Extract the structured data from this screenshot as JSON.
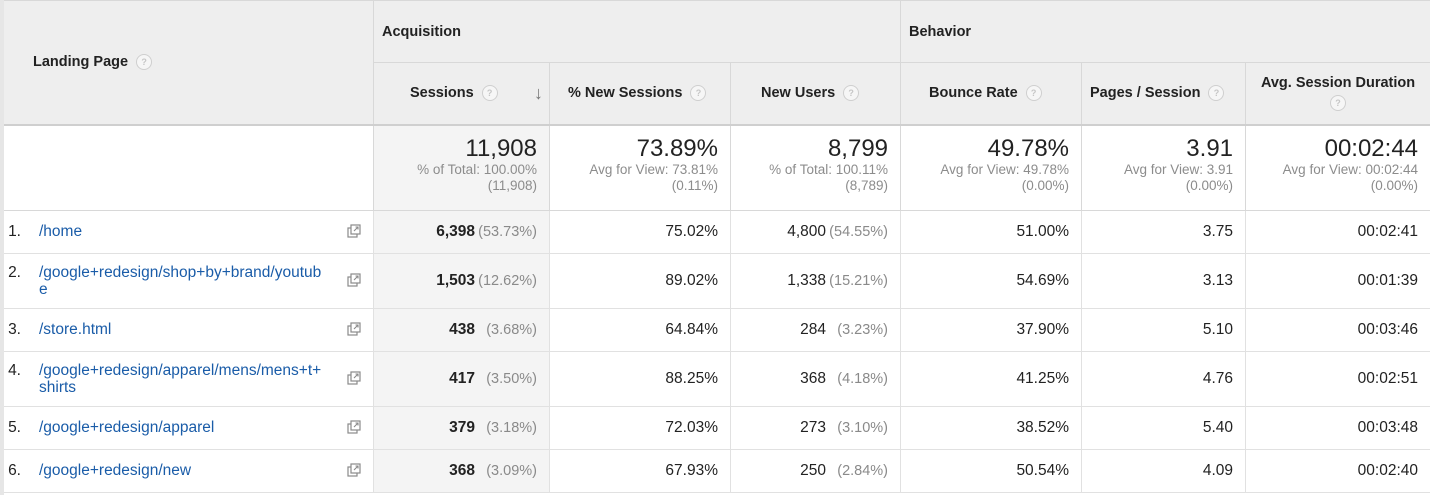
{
  "columns": {
    "landing_page": "Landing Page",
    "acquisition": "Acquisition",
    "behavior": "Behavior",
    "sessions": "Sessions",
    "pct_new_sessions": "% New Sessions",
    "new_users": "New Users",
    "bounce_rate": "Bounce Rate",
    "pages_per_session": "Pages / Session",
    "avg_session_duration": "Avg. Session Duration",
    "help_glyph": "?",
    "sort_glyph": "↓"
  },
  "totals": {
    "sessions": {
      "value": "11,908",
      "line1": "% of Total: 100.00%",
      "line2": "(11,908)"
    },
    "pct_new_sessions": {
      "value": "73.89%",
      "line1": "Avg for View: 73.81%",
      "line2": "(0.11%)"
    },
    "new_users": {
      "value": "8,799",
      "line1": "% of Total: 100.11%",
      "line2": "(8,789)"
    },
    "bounce_rate": {
      "value": "49.78%",
      "line1": "Avg for View: 49.78%",
      "line2": "(0.00%)"
    },
    "pages_per_session": {
      "value": "3.91",
      "line1": "Avg for View: 3.91",
      "line2": "(0.00%)"
    },
    "avg_session_duration": {
      "value": "00:02:44",
      "line1": "Avg for View: 00:02:44",
      "line2": "(0.00%)"
    }
  },
  "rows": [
    {
      "num": "1.",
      "page": "/home",
      "sessions": "6,398",
      "sessions_pct": "(53.73%)",
      "pct_new": "75.02%",
      "new_users": "4,800",
      "new_users_pct": "(54.55%)",
      "bounce": "51.00%",
      "pps": "3.75",
      "duration": "00:02:41"
    },
    {
      "num": "2.",
      "page": "/google+redesign/shop+by+brand/youtube",
      "sessions": "1,503",
      "sessions_pct": "(12.62%)",
      "pct_new": "89.02%",
      "new_users": "1,338",
      "new_users_pct": "(15.21%)",
      "bounce": "54.69%",
      "pps": "3.13",
      "duration": "00:01:39"
    },
    {
      "num": "3.",
      "page": "/store.html",
      "sessions": "438",
      "sessions_pct": "(3.68%)",
      "pct_new": "64.84%",
      "new_users": "284",
      "new_users_pct": "(3.23%)",
      "bounce": "37.90%",
      "pps": "5.10",
      "duration": "00:03:46"
    },
    {
      "num": "4.",
      "page": "/google+redesign/apparel/mens/mens+t+shirts",
      "sessions": "417",
      "sessions_pct": "(3.50%)",
      "pct_new": "88.25%",
      "new_users": "368",
      "new_users_pct": "(4.18%)",
      "bounce": "41.25%",
      "pps": "4.76",
      "duration": "00:02:51"
    },
    {
      "num": "5.",
      "page": "/google+redesign/apparel",
      "sessions": "379",
      "sessions_pct": "(3.18%)",
      "pct_new": "72.03%",
      "new_users": "273",
      "new_users_pct": "(3.10%)",
      "bounce": "38.52%",
      "pps": "5.40",
      "duration": "00:03:48"
    },
    {
      "num": "6.",
      "page": "/google+redesign/new",
      "sessions": "368",
      "sessions_pct": "(3.09%)",
      "pct_new": "67.93%",
      "new_users": "250",
      "new_users_pct": "(2.84%)",
      "bounce": "50.54%",
      "pps": "4.09",
      "duration": "00:02:40"
    }
  ],
  "colors": {
    "link": "#1a5ca8",
    "header_bg": "#eeeeee",
    "sorted_column_bg": "#f4f4f4",
    "secondary_text": "#8a8a8a"
  },
  "icons": {
    "help": "help-icon",
    "sort": "sort-descending-icon",
    "open_page": "open-page-icon"
  }
}
